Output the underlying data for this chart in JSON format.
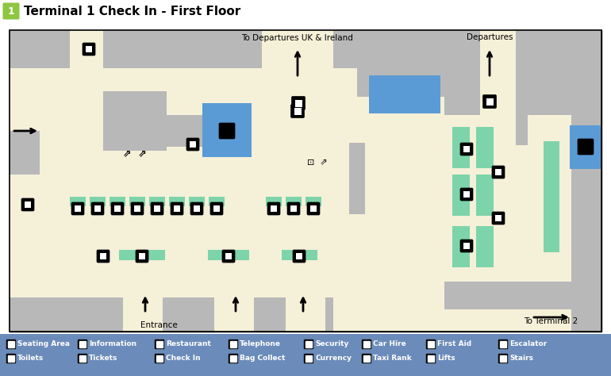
{
  "title": "Terminal 1 Check In - First Floor",
  "title_number": "1",
  "title_number_bg": "#8dc63f",
  "bg_color": "#f5f0d8",
  "gray_color": "#b8b8b8",
  "blue_color": "#5b9bd5",
  "green_color": "#7dd4aa",
  "legend_bg": "#6b8cba",
  "white": "#ffffff",
  "black": "#000000",
  "legend_items_row1": [
    "Seating Area",
    "Information",
    "Restaurant",
    "Telephone",
    "Security",
    "Car Hire",
    "First Aid",
    "Escalator"
  ],
  "legend_items_row2": [
    "Toilets",
    "Tickets",
    "Check In",
    "Bag Collect",
    "Currency",
    "Taxi Rank",
    "Lifts",
    "Stairs"
  ]
}
